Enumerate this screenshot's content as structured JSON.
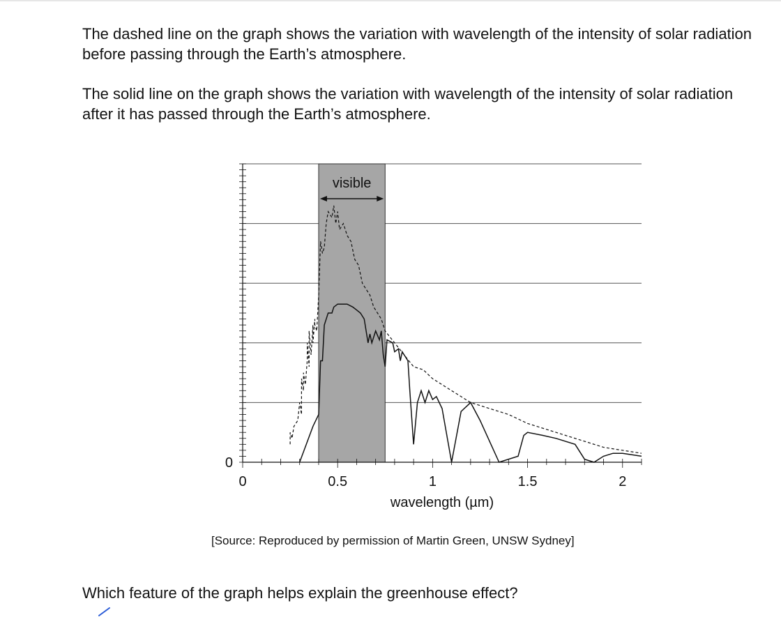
{
  "intro": {
    "paragraph1": "The dashed line on the graph shows the variation with wavelength of the intensity of solar radiation before passing through the Earth’s atmosphere.",
    "paragraph2": "The solid line on the graph shows the variation with wavelength of the intensity of solar radiation after it has passed through the Earth’s atmosphere."
  },
  "source": "[Source: Reproduced by permission of Martin Green, UNSW Sydney]",
  "question": "Which feature of the graph helps explain the greenhouse effect?",
  "chart_data": {
    "type": "line",
    "title": "",
    "xlabel": "wavelength (µm)",
    "ylabel": "",
    "xlim": [
      0,
      2.1
    ],
    "ylim": [
      0,
      5
    ],
    "x_ticks": [
      "0",
      "0.5",
      "1",
      "1.5",
      "2"
    ],
    "y_ticks": [
      "0"
    ],
    "grid": true,
    "band": {
      "label": "visible",
      "x_start": 0.4,
      "x_end": 0.75,
      "color": "#a6a6a6"
    },
    "series": [
      {
        "style": "dashed",
        "points": [
          [
            0.25,
            0.3
          ],
          [
            0.25,
            0.5
          ],
          [
            0.26,
            0.4
          ],
          [
            0.27,
            0.6
          ],
          [
            0.29,
            0.7
          ],
          [
            0.3,
            1.0
          ],
          [
            0.31,
            0.8
          ],
          [
            0.31,
            1.4
          ],
          [
            0.32,
            1.2
          ],
          [
            0.32,
            1.5
          ],
          [
            0.33,
            1.3
          ],
          [
            0.34,
            1.7
          ],
          [
            0.34,
            2.0
          ],
          [
            0.35,
            1.6
          ],
          [
            0.35,
            2.2
          ],
          [
            0.36,
            1.8
          ],
          [
            0.37,
            2.3
          ],
          [
            0.37,
            2.0
          ],
          [
            0.38,
            2.4
          ],
          [
            0.38,
            2.3
          ],
          [
            0.39,
            2.2
          ],
          [
            0.4,
            2.8
          ],
          [
            0.41,
            3.7
          ],
          [
            0.42,
            3.5
          ],
          [
            0.43,
            3.6
          ],
          [
            0.44,
            4.0
          ],
          [
            0.45,
            4.2
          ],
          [
            0.47,
            4.1
          ],
          [
            0.48,
            4.3
          ],
          [
            0.49,
            4.0
          ],
          [
            0.5,
            4.2
          ],
          [
            0.51,
            3.9
          ],
          [
            0.53,
            4.0
          ],
          [
            0.55,
            3.8
          ],
          [
            0.57,
            3.7
          ],
          [
            0.59,
            3.4
          ],
          [
            0.61,
            3.3
          ],
          [
            0.63,
            3.0
          ],
          [
            0.65,
            2.9
          ],
          [
            0.67,
            2.8
          ],
          [
            0.69,
            2.6
          ],
          [
            0.71,
            2.5
          ],
          [
            0.73,
            2.4
          ],
          [
            0.75,
            2.2
          ],
          [
            0.8,
            2.0
          ],
          [
            0.85,
            1.8
          ],
          [
            0.9,
            1.6
          ],
          [
            0.95,
            1.55
          ],
          [
            1.0,
            1.4
          ],
          [
            1.05,
            1.3
          ],
          [
            1.1,
            1.2
          ],
          [
            1.15,
            1.1
          ],
          [
            1.2,
            1.0
          ],
          [
            1.3,
            0.9
          ],
          [
            1.4,
            0.8
          ],
          [
            1.5,
            0.65
          ],
          [
            1.6,
            0.55
          ],
          [
            1.7,
            0.45
          ],
          [
            1.8,
            0.35
          ],
          [
            1.9,
            0.25
          ],
          [
            2.0,
            0.2
          ],
          [
            2.1,
            0.15
          ]
        ]
      },
      {
        "style": "solid",
        "points": [
          [
            0.3,
            0.0
          ],
          [
            0.37,
            0.6
          ],
          [
            0.4,
            0.8
          ],
          [
            0.41,
            1.7
          ],
          [
            0.42,
            1.7
          ],
          [
            0.43,
            2.3
          ],
          [
            0.45,
            2.5
          ],
          [
            0.47,
            2.5
          ],
          [
            0.48,
            2.6
          ],
          [
            0.5,
            2.65
          ],
          [
            0.55,
            2.65
          ],
          [
            0.58,
            2.6
          ],
          [
            0.62,
            2.5
          ],
          [
            0.64,
            2.4
          ],
          [
            0.66,
            2.0
          ],
          [
            0.67,
            2.15
          ],
          [
            0.68,
            2.0
          ],
          [
            0.7,
            2.2
          ],
          [
            0.72,
            2.05
          ],
          [
            0.73,
            2.2
          ],
          [
            0.74,
            1.8
          ],
          [
            0.75,
            1.6
          ],
          [
            0.76,
            2.05
          ],
          [
            0.79,
            2.0
          ],
          [
            0.8,
            1.85
          ],
          [
            0.82,
            1.9
          ],
          [
            0.83,
            1.7
          ],
          [
            0.84,
            1.85
          ],
          [
            0.85,
            1.8
          ],
          [
            0.87,
            1.7
          ],
          [
            0.88,
            1.2
          ],
          [
            0.9,
            0.3
          ],
          [
            0.92,
            1.0
          ],
          [
            0.94,
            1.2
          ],
          [
            0.96,
            1.0
          ],
          [
            0.98,
            1.2
          ],
          [
            1.0,
            1.05
          ],
          [
            1.02,
            1.1
          ],
          [
            1.05,
            0.9
          ],
          [
            1.1,
            0.0
          ],
          [
            1.15,
            0.85
          ],
          [
            1.2,
            1.0
          ],
          [
            1.25,
            0.7
          ],
          [
            1.35,
            0.0
          ],
          [
            1.45,
            0.1
          ],
          [
            1.48,
            0.45
          ],
          [
            1.5,
            0.5
          ],
          [
            1.58,
            0.45
          ],
          [
            1.65,
            0.4
          ],
          [
            1.75,
            0.3
          ],
          [
            1.8,
            0.05
          ],
          [
            1.85,
            0.0
          ],
          [
            1.9,
            0.1
          ],
          [
            1.95,
            0.15
          ],
          [
            2.0,
            0.15
          ],
          [
            2.1,
            0.1
          ]
        ]
      }
    ]
  }
}
